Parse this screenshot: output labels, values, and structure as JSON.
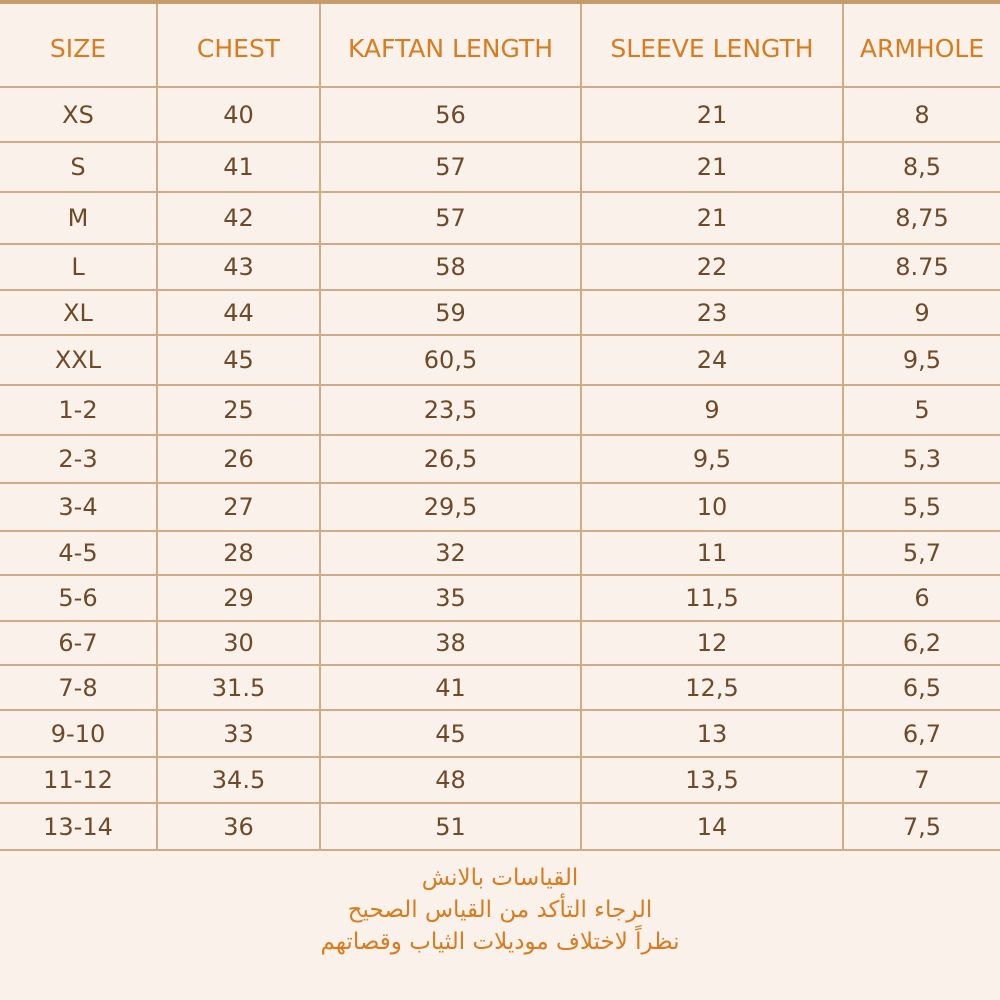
{
  "colors": {
    "background": "#f9f1ea",
    "grid": "#d1ab85",
    "header_text": "#d97c1f",
    "cell_text": "#6e4a29",
    "top_bar": "#c69c6d"
  },
  "table": {
    "headers": [
      "SIZE",
      "CHEST",
      "KAFTAN LENGTH",
      "SLEEVE LENGTH",
      "ARMHOLE"
    ],
    "rows": [
      [
        "XS",
        "40",
        "56",
        "21",
        "8"
      ],
      [
        "S",
        "41",
        "57",
        "21",
        "8,5"
      ],
      [
        "M",
        "42",
        "57",
        "21",
        "8,75"
      ],
      [
        "L",
        "43",
        "58",
        "22",
        "8.75"
      ],
      [
        "XL",
        "44",
        "59",
        "23",
        "9"
      ],
      [
        "XXL",
        "45",
        "60,5",
        "24",
        "9,5"
      ],
      [
        "1-2",
        "25",
        "23,5",
        "9",
        "5"
      ],
      [
        "2-3",
        "26",
        "26,5",
        "9,5",
        "5,3"
      ],
      [
        "3-4",
        "27",
        "29,5",
        "10",
        "5,5"
      ],
      [
        "4-5",
        "28",
        "32",
        "11",
        "5,7"
      ],
      [
        "5-6",
        "29",
        "35",
        "11,5",
        "6"
      ],
      [
        "6-7",
        "30",
        "38",
        "12",
        "6,2"
      ],
      [
        "7-8",
        "31.5",
        "41",
        "12,5",
        "6,5"
      ],
      [
        "9-10",
        "33",
        "45",
        "13",
        "6,7"
      ],
      [
        "11-12",
        "34.5",
        "48",
        "13,5",
        "7"
      ],
      [
        "13-14",
        "36",
        "51",
        "14",
        "7,5"
      ]
    ]
  },
  "footer": {
    "lines": [
      "القياسات بالانش",
      "الرجاء التأكد من القياس الصحيح",
      "نظراً لاختلاف موديلات الثياب وقصاتهم"
    ]
  }
}
